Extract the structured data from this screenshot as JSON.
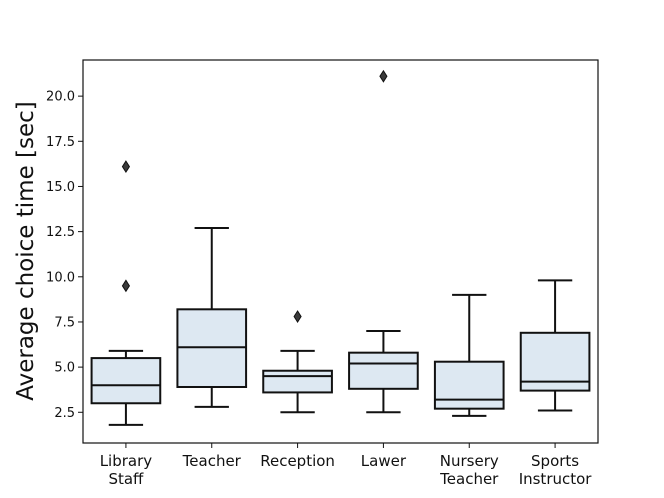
{
  "chart_data": {
    "type": "box",
    "title": "",
    "xlabel": "",
    "ylabel": "Average choice time [sec]",
    "ylim": [
      0.8,
      22.0
    ],
    "yticks": [
      2.5,
      5.0,
      7.5,
      10.0,
      12.5,
      15.0,
      17.5,
      20.0
    ],
    "ytick_labels": [
      "2.5",
      "5.0",
      "7.5",
      "10.0",
      "12.5",
      "15.0",
      "17.5",
      "20.0"
    ],
    "grid": false,
    "box_color": "#dde8f2",
    "line_color": "#111111",
    "categories": [
      {
        "lines": [
          "Library",
          "Staff"
        ],
        "whisker_low": 1.8,
        "q1": 3.0,
        "median": 4.0,
        "q3": 5.5,
        "whisker_high": 5.9,
        "outliers": [
          9.5,
          16.1
        ]
      },
      {
        "lines": [
          "Teacher"
        ],
        "whisker_low": 2.8,
        "q1": 3.9,
        "median": 6.1,
        "q3": 8.2,
        "whisker_high": 12.7,
        "outliers": []
      },
      {
        "lines": [
          "Reception"
        ],
        "whisker_low": 2.5,
        "q1": 3.6,
        "median": 4.5,
        "q3": 4.8,
        "whisker_high": 5.9,
        "outliers": [
          7.8
        ]
      },
      {
        "lines": [
          "Lawer"
        ],
        "whisker_low": 2.5,
        "q1": 3.8,
        "median": 5.2,
        "q3": 5.8,
        "whisker_high": 7.0,
        "outliers": [
          21.1
        ]
      },
      {
        "lines": [
          "Nursery",
          "Teacher"
        ],
        "whisker_low": 2.3,
        "q1": 2.7,
        "median": 3.2,
        "q3": 5.3,
        "whisker_high": 9.0,
        "outliers": []
      },
      {
        "lines": [
          "Sports",
          "Instructor"
        ],
        "whisker_low": 2.6,
        "q1": 3.7,
        "median": 4.2,
        "q3": 6.9,
        "whisker_high": 9.8,
        "outliers": []
      }
    ]
  }
}
